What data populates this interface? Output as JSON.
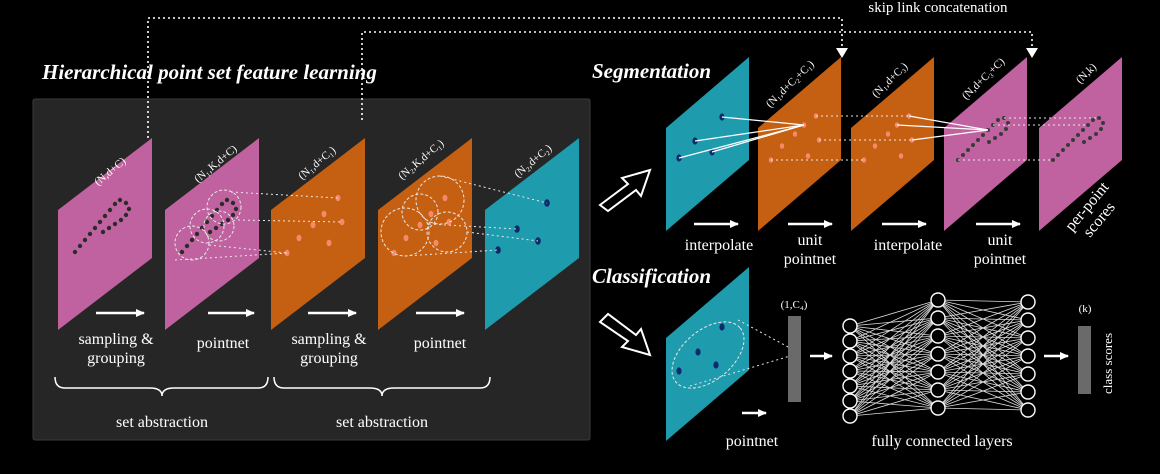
{
  "titles": {
    "hierarchical": "Hierarchical point set feature learning",
    "segmentation": "Segmentation",
    "classification": "Classification"
  },
  "skip_link": "skip link concatenation",
  "encoder": {
    "planes": [
      {
        "dim": "(N,d+C)",
        "color": "#c0629f"
      },
      {
        "dim": "(N₁,K,d+C)",
        "color": "#c0629f"
      },
      {
        "dim": "(N₁,d+C₁)",
        "color": "#c55f12"
      },
      {
        "dim": "(N₂,K,d+C₁)",
        "color": "#c55f12"
      },
      {
        "dim": "(N₂,d+C₂)",
        "color": "#1e9bac"
      }
    ],
    "steps": {
      "sg1_line1": "sampling &",
      "sg1_line2": "grouping",
      "pn1": "pointnet",
      "sg2_line1": "sampling &",
      "sg2_line2": "grouping",
      "pn2": "pointnet"
    },
    "set_abstraction_1": "set abstraction",
    "set_abstraction_2": "set abstraction"
  },
  "segmentation": {
    "planes": [
      {
        "dim": "",
        "color": "#1e9bac"
      },
      {
        "dim": "(N₁,d+C₂+C₁)",
        "color": "#c55f12"
      },
      {
        "dim": "(N₁,d+C₃)",
        "color": "#c55f12"
      },
      {
        "dim": "(N,d+C₃+C)",
        "color": "#c0629f"
      },
      {
        "dim": "(N,k)",
        "color": "#c0629f"
      }
    ],
    "steps": {
      "interp1": "interpolate",
      "unit1_line1": "unit",
      "unit1_line2": "pointnet",
      "interp2": "interpolate",
      "unit2_line1": "unit",
      "unit2_line2": "pointnet"
    },
    "per_point_line1": "per-point",
    "per_point_line2": "scores"
  },
  "classification": {
    "plane_color": "#1e9bac",
    "pointnet": "pointnet",
    "vector_dim": "(1,C₄)",
    "fc_label": "fully connected layers",
    "output_dim": "(k)",
    "class_scores": "class scores"
  },
  "colors": {
    "pink": "#c0629f",
    "orange": "#c55f12",
    "teal": "#1e9bac",
    "panel": "#262626",
    "point_dark": "#2b2b2b",
    "point_navy": "#0d2a6b",
    "point_salmon": "#f58a6a",
    "bar_gray": "#6a6a6a"
  }
}
